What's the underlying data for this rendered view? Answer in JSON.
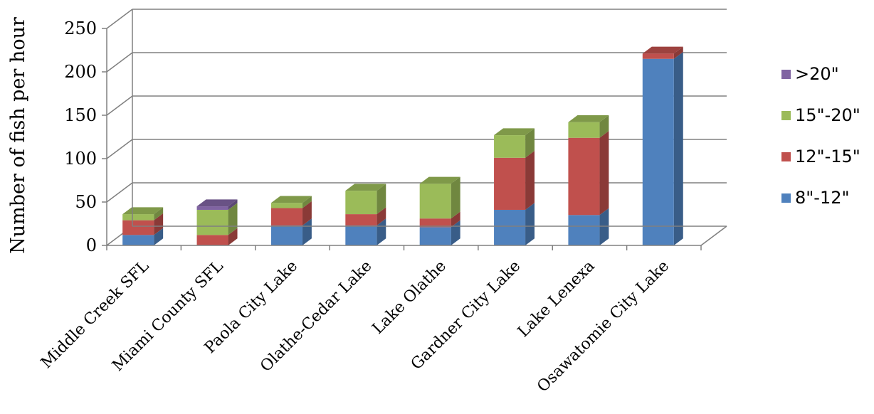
{
  "chart_data": {
    "type": "bar",
    "stacked": true,
    "three_d": true,
    "title": "",
    "xlabel": "",
    "ylabel": "Number of fish per hour",
    "ylim": [
      0,
      250
    ],
    "yticks": [
      0,
      50,
      100,
      150,
      200,
      250
    ],
    "grid": true,
    "legend_position": "right",
    "categories": [
      "Middle Creek SFL",
      "Miami County SFL",
      "Paola City Lake",
      "Olathe-Cedar Lake",
      "Lake Olathe",
      "Gardner City Lake",
      "Lake Lenexa",
      "Osawatomie City Lake"
    ],
    "series": [
      {
        "name": "8\"-12\"",
        "color": "#4f81bd",
        "values": [
          12,
          0,
          23,
          23,
          21,
          41,
          35,
          215
        ]
      },
      {
        "name": "12\"-15\"",
        "color": "#c0504d",
        "values": [
          17,
          12,
          20,
          13,
          10,
          60,
          89,
          6
        ]
      },
      {
        "name": "15\"-20\"",
        "color": "#9bbb59",
        "values": [
          7,
          29,
          6,
          27,
          40,
          26,
          18,
          0
        ]
      },
      {
        "name": ">20\"",
        "color": "#8064a2",
        "values": [
          0,
          4,
          0,
          0,
          0,
          0,
          0,
          0
        ]
      }
    ]
  }
}
